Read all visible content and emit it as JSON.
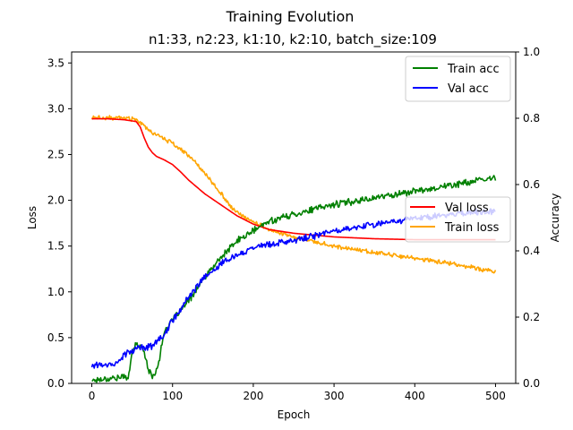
{
  "chart_data": {
    "type": "line",
    "title": "Training Evolution",
    "subtitle": "n1:33, n2:23, k1:10, k2:10, batch_size:109",
    "xlabel": "Epoch",
    "ylabel_left": "Loss",
    "ylabel_right": "Accuracy",
    "xlim": [
      -25,
      525
    ],
    "ylim_left": [
      0,
      3.62
    ],
    "ylim_right": [
      0,
      1.0
    ],
    "x_ticks": [
      0,
      100,
      200,
      300,
      400,
      500
    ],
    "y_left_ticks": [
      0.0,
      0.5,
      1.0,
      1.5,
      2.0,
      2.5,
      3.0,
      3.5
    ],
    "y_right_ticks": [
      0.0,
      0.2,
      0.4,
      0.6,
      0.8,
      1.0
    ],
    "x_tick_labels": [
      "0",
      "100",
      "200",
      "300",
      "400",
      "500"
    ],
    "y_left_tick_labels": [
      "0.0",
      "0.5",
      "1.0",
      "1.5",
      "2.0",
      "2.5",
      "3.0",
      "3.5"
    ],
    "y_right_tick_labels": [
      "0.0",
      "0.2",
      "0.4",
      "0.6",
      "0.8",
      "1.0"
    ],
    "grid": false,
    "legends": [
      {
        "placement": "top-right",
        "entries": [
          "Train acc",
          "Val acc"
        ]
      },
      {
        "placement": "center-right",
        "entries": [
          "Val loss",
          "Train loss"
        ]
      }
    ],
    "series": [
      {
        "name": "Train acc",
        "axis": "right",
        "color": "#008000",
        "noise": 0.008,
        "x": [
          0,
          20,
          45,
          50,
          55,
          60,
          65,
          70,
          75,
          80,
          85,
          90,
          100,
          120,
          140,
          160,
          180,
          200,
          220,
          250,
          300,
          350,
          400,
          450,
          500
        ],
        "y": [
          0.01,
          0.015,
          0.02,
          0.09,
          0.12,
          0.11,
          0.1,
          0.04,
          0.02,
          0.04,
          0.09,
          0.16,
          0.19,
          0.25,
          0.32,
          0.38,
          0.43,
          0.46,
          0.49,
          0.51,
          0.54,
          0.56,
          0.58,
          0.6,
          0.62
        ]
      },
      {
        "name": "Val acc",
        "axis": "right",
        "color": "#0000ff",
        "noise": 0.008,
        "x": [
          0,
          30,
          40,
          50,
          60,
          70,
          80,
          90,
          100,
          120,
          140,
          160,
          180,
          200,
          220,
          250,
          300,
          350,
          400,
          450,
          500
        ],
        "y": [
          0.055,
          0.06,
          0.085,
          0.1,
          0.11,
          0.11,
          0.12,
          0.15,
          0.19,
          0.26,
          0.32,
          0.36,
          0.39,
          0.41,
          0.42,
          0.43,
          0.46,
          0.48,
          0.5,
          0.51,
          0.52
        ]
      },
      {
        "name": "Val loss",
        "axis": "left",
        "color": "#ff0000",
        "noise": 0,
        "x": [
          0,
          20,
          40,
          55,
          60,
          65,
          70,
          75,
          80,
          90,
          100,
          110,
          120,
          140,
          160,
          180,
          200,
          220,
          250,
          300,
          350,
          400,
          450,
          500
        ],
        "y": [
          2.89,
          2.89,
          2.88,
          2.86,
          2.8,
          2.68,
          2.58,
          2.52,
          2.48,
          2.44,
          2.39,
          2.31,
          2.22,
          2.07,
          1.95,
          1.83,
          1.74,
          1.68,
          1.64,
          1.6,
          1.58,
          1.57,
          1.57,
          1.57
        ]
      },
      {
        "name": "Train loss",
        "axis": "left",
        "color": "#ffa500",
        "noise": 0.018,
        "x": [
          0,
          40,
          55,
          60,
          70,
          80,
          100,
          120,
          140,
          160,
          170,
          180,
          200,
          220,
          250,
          300,
          350,
          400,
          450,
          500
        ],
        "y": [
          2.9,
          2.9,
          2.88,
          2.85,
          2.76,
          2.72,
          2.62,
          2.49,
          2.3,
          2.08,
          1.95,
          1.86,
          1.77,
          1.68,
          1.6,
          1.5,
          1.43,
          1.37,
          1.3,
          1.22
        ]
      }
    ]
  }
}
